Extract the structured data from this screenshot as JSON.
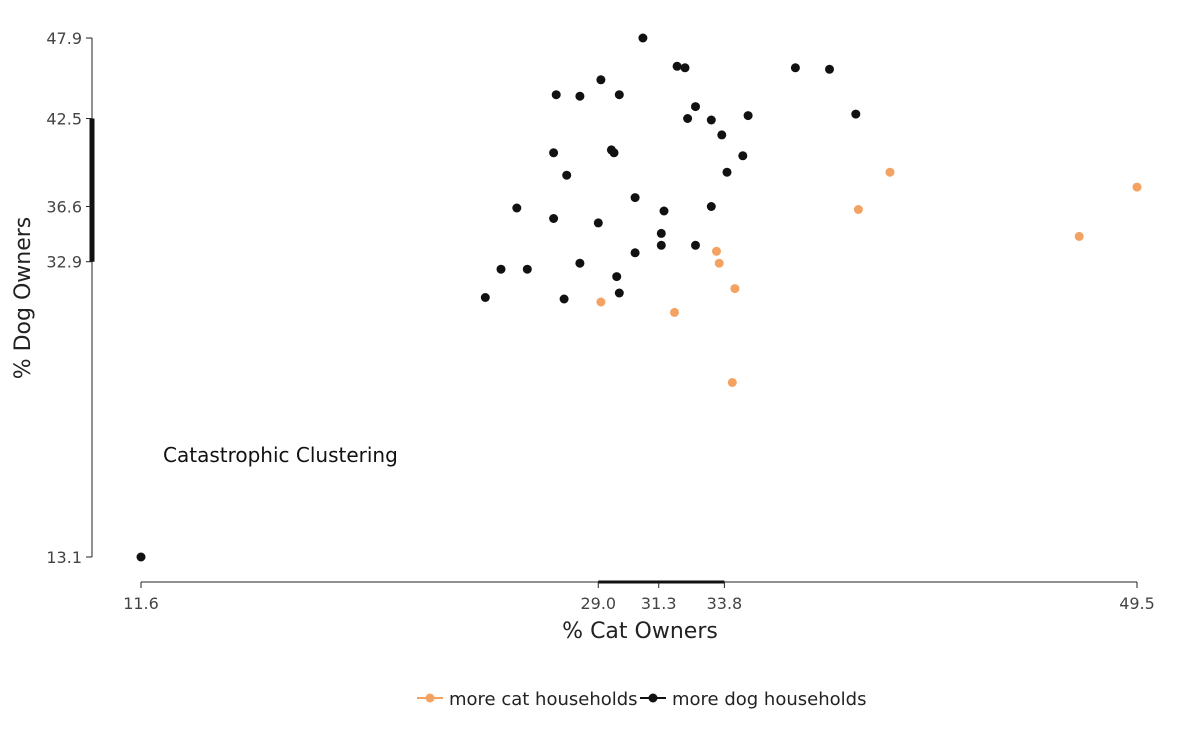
{
  "chart_data": {
    "type": "scatter",
    "xlabel": "% Cat Owners",
    "ylabel": "% Dog Owners",
    "annotation": "Catastrophic Clustering",
    "xlim": [
      11.6,
      49.5
    ],
    "ylim": [
      13.1,
      47.9
    ],
    "x_ticks": [
      "11.6",
      "29.0",
      "31.3",
      "33.8",
      "49.5"
    ],
    "y_ticks": [
      "13.1",
      "32.9",
      "36.6",
      "42.5",
      "47.9"
    ],
    "x_range_bar": [
      29.0,
      33.8
    ],
    "y_range_bar": [
      32.9,
      42.5
    ],
    "legend_position": "bottom",
    "series": [
      {
        "name": "more cat households",
        "color": "#F4A261",
        "points": [
          [
            29.1,
            30.2
          ],
          [
            31.9,
            29.5
          ],
          [
            34.1,
            24.8
          ],
          [
            33.5,
            33.6
          ],
          [
            33.6,
            32.8
          ],
          [
            34.2,
            31.1
          ],
          [
            38.9,
            36.4
          ],
          [
            40.1,
            38.9
          ],
          [
            47.3,
            34.6
          ],
          [
            49.5,
            37.9
          ]
        ]
      },
      {
        "name": "more dog households",
        "color": "#111111",
        "points": [
          [
            11.6,
            13.1
          ],
          [
            30.7,
            47.9
          ],
          [
            32.0,
            46.0
          ],
          [
            32.3,
            45.9
          ],
          [
            36.5,
            45.9
          ],
          [
            37.8,
            45.8
          ],
          [
            29.1,
            45.1
          ],
          [
            27.4,
            44.1
          ],
          [
            28.3,
            44.0
          ],
          [
            29.8,
            44.1
          ],
          [
            32.7,
            43.3
          ],
          [
            32.4,
            42.5
          ],
          [
            33.3,
            42.4
          ],
          [
            34.7,
            42.7
          ],
          [
            38.8,
            42.8
          ],
          [
            33.7,
            41.4
          ],
          [
            29.5,
            40.4
          ],
          [
            29.6,
            40.2
          ],
          [
            27.3,
            40.2
          ],
          [
            34.5,
            40.0
          ],
          [
            27.8,
            38.7
          ],
          [
            33.9,
            38.9
          ],
          [
            30.4,
            37.2
          ],
          [
            25.9,
            36.5
          ],
          [
            33.3,
            36.6
          ],
          [
            31.5,
            36.3
          ],
          [
            27.3,
            35.8
          ],
          [
            29.0,
            35.5
          ],
          [
            31.4,
            34.8
          ],
          [
            31.4,
            34.0
          ],
          [
            32.7,
            34.0
          ],
          [
            30.4,
            33.5
          ],
          [
            28.3,
            32.8
          ],
          [
            25.3,
            32.4
          ],
          [
            26.3,
            32.4
          ],
          [
            29.7,
            31.9
          ],
          [
            29.8,
            30.8
          ],
          [
            24.7,
            30.5
          ],
          [
            27.7,
            30.4
          ]
        ]
      }
    ]
  }
}
